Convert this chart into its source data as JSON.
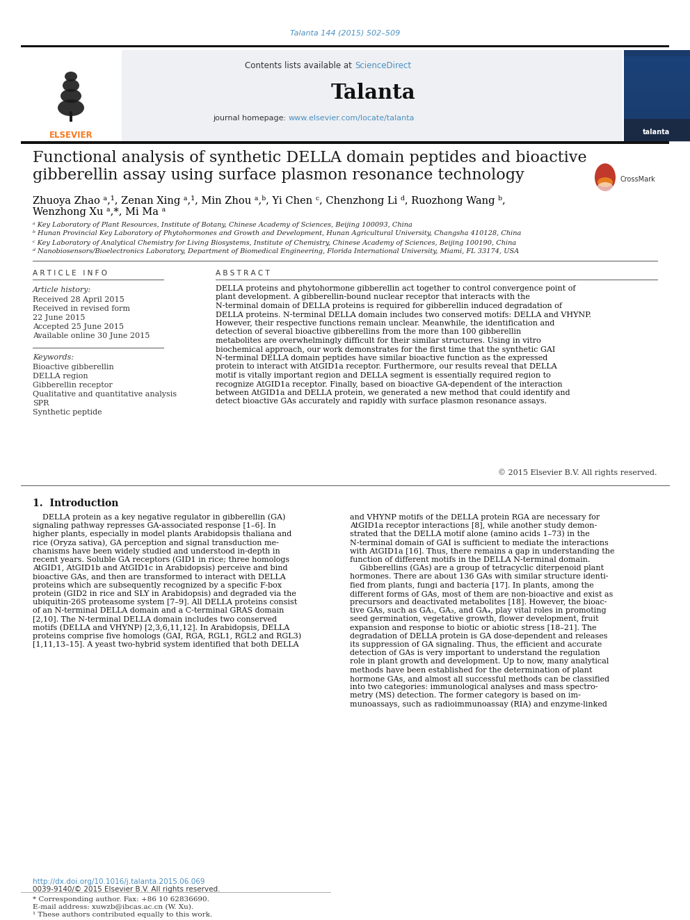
{
  "journal_ref": "Talanta 144 (2015) 502–509",
  "journal_name": "Talanta",
  "contents_line": "Contents lists available at ScienceDirect",
  "journal_homepage": "journal homepage: www.elsevier.com/locate/talanta",
  "title_line1": "Functional analysis of synthetic DELLA domain peptides and bioactive",
  "title_line2": "gibberellin assay using surface plasmon resonance technology",
  "author_line1": "Zhuoya Zhao ᵃ,¹, Zenan Xing ᵃ,¹, Min Zhou ᵃ,ᵇ, Yi Chen ᶜ, Chenzhong Li ᵈ, Ruozhong Wang ᵇ,",
  "author_line2": "Wenzhong Xu ᵃ,*, Mi Ma ᵃ",
  "affil_a": "ᵃ Key Laboratory of Plant Resources, Institute of Botany, Chinese Academy of Sciences, Beijing 100093, China",
  "affil_b": "ᵇ Hunan Provincial Key Laboratory of Phytohormones and Growth and Development, Hunan Agricultural University, Changsha 410128, China",
  "affil_c": "ᶜ Key Laboratory of Analytical Chemistry for Living Biosystems, Institute of Chemistry, Chinese Academy of Sciences, Beijing 100190, China",
  "affil_d": "ᵈ Nanobiosensors/Bioelectronics Laboratory, Department of Biomedical Engineering, Florida International University, Miami, FL 33174, USA",
  "article_info_header": "A R T I C L E   I N F O",
  "article_history_label": "Article history:",
  "received1": "Received 28 April 2015",
  "received2": "Received in revised form",
  "received2b": "22 June 2015",
  "accepted": "Accepted 25 June 2015",
  "available": "Available online 30 June 2015",
  "keywords_label": "Keywords:",
  "keywords": [
    "Bioactive gibberellin",
    "DELLA region",
    "Gibberellin receptor",
    "Qualitative and quantitative analysis",
    "SPR",
    "Synthetic peptide"
  ],
  "abstract_header": "A B S T R A C T",
  "abstract_text": "DELLA proteins and phytohormone gibberellin act together to control convergence point of plant development. A gibberellin-bound nuclear receptor that interacts with the N-terminal domain of DELLA proteins is required for gibberellin induced degradation of DELLA proteins. N-terminal DELLA domain includes two conserved motifs: DELLA and VHYNP. However, their respective functions remain unclear. Meanwhile, the identification and detection of several bioactive gibberellins from the more than 100 gibberellin metabolites are overwhelmingly difficult for their similar structures. Using in vitro biochemical approach, our work demonstrates for the first time that the synthetic GAI N-terminal DELLA domain peptides have similar bioactive function as the expressed protein to interact with AtGID1a receptor. Furthermore, our results reveal that DELLA motif is vitally important region and DELLA segment is essentially required region to recognize AtGID1a receptor. Finally, based on bioactive GA-dependent of the interaction between AtGID1a and DELLA protein, we generated a new method that could identify and detect bioactive GAs accurately and rapidly with surface plasmon resonance assays.",
  "copyright": "© 2015 Elsevier B.V. All rights reserved.",
  "intro_header": "1.  Introduction",
  "intro_col1_lines": [
    "    DELLA protein as a key negative regulator in gibberellin (GA)",
    "signaling pathway represses GA-associated response [1–6]. In",
    "higher plants, especially in model plants Arabidopsis thaliana and",
    "rice (Oryza sativa), GA perception and signal transduction me-",
    "chanisms have been widely studied and understood in-depth in",
    "recent years. Soluble GA receptors (GID1 in rice; three homologs",
    "AtGID1, AtGID1b and AtGID1c in Arabidopsis) perceive and bind",
    "bioactive GAs, and then are transformed to interact with DELLA",
    "proteins which are subsequently recognized by a specific F-box",
    "protein (GID2 in rice and SLY in Arabidopsis) and degraded via the",
    "ubiquitin-26S proteasome system [7–9]. All DELLA proteins consist",
    "of an N-terminal DELLA domain and a C-terminal GRAS domain",
    "[2,10]. The N-terminal DELLA domain includes two conserved",
    "motifs (DELLA and VHYNP) [2,3,6,11,12]. In Arabidopsis, DELLA",
    "proteins comprise five homologs (GAI, RGA, RGL1, RGL2 and RGL3)",
    "[1,11,13–15]. A yeast two-hybrid system identified that both DELLA"
  ],
  "intro_col2_lines": [
    "and VHYNP motifs of the DELLA protein RGA are necessary for",
    "AtGID1a receptor interactions [8], while another study demon-",
    "strated that the DELLA motif alone (amino acids 1–73) in the",
    "N-terminal domain of GAI is sufficient to mediate the interactions",
    "with AtGID1a [16]. Thus, there remains a gap in understanding the",
    "function of different motifs in the DELLA N-terminal domain.",
    "    Gibberellins (GAs) are a group of tetracyclic diterpenoid plant",
    "hormones. There are about 136 GAs with similar structure identi-",
    "fied from plants, fungi and bacteria [17]. In plants, among the",
    "different forms of GAs, most of them are non-bioactive and exist as",
    "precursors and deactivated metabolites [18]. However, the bioac-",
    "tive GAs, such as GA₁, GA₃, and GA₄, play vital roles in promoting",
    "seed germination, vegetative growth, flower development, fruit",
    "expansion and response to biotic or abiotic stress [18–21]. The",
    "degradation of DELLA protein is GA dose-dependent and releases",
    "its suppression of GA signaling. Thus, the efficient and accurate",
    "detection of GAs is very important to understand the regulation",
    "role in plant growth and development. Up to now, many analytical",
    "methods have been established for the determination of plant",
    "hormone GAs, and almost all successful methods can be classified",
    "into two categories: immunological analyses and mass spectro-",
    "metry (MS) detection. The former category is based on im-",
    "munoassays, such as radioimmunoassay (RIA) and enzyme-linked"
  ],
  "footnote_star": "* Corresponding author. Fax: +86 10 62836690.",
  "footnote_email": "E-mail address: xuwzb@ibcas.ac.cn (W. Xu).",
  "footnote_1": "¹ These authors contributed equally to this work.",
  "doi_link": "http://dx.doi.org/10.1016/j.talanta.2015.06.069",
  "issn": "0039-9140/© 2015 Elsevier B.V. All rights reserved.",
  "bg_color": "#ffffff",
  "header_bg": "#eef0f3",
  "dark_bar_color": "#111111",
  "link_color": "#4a8fc0",
  "title_color": "#1a1a1a",
  "text_color": "#000000",
  "elsevier_orange": "#f47920"
}
